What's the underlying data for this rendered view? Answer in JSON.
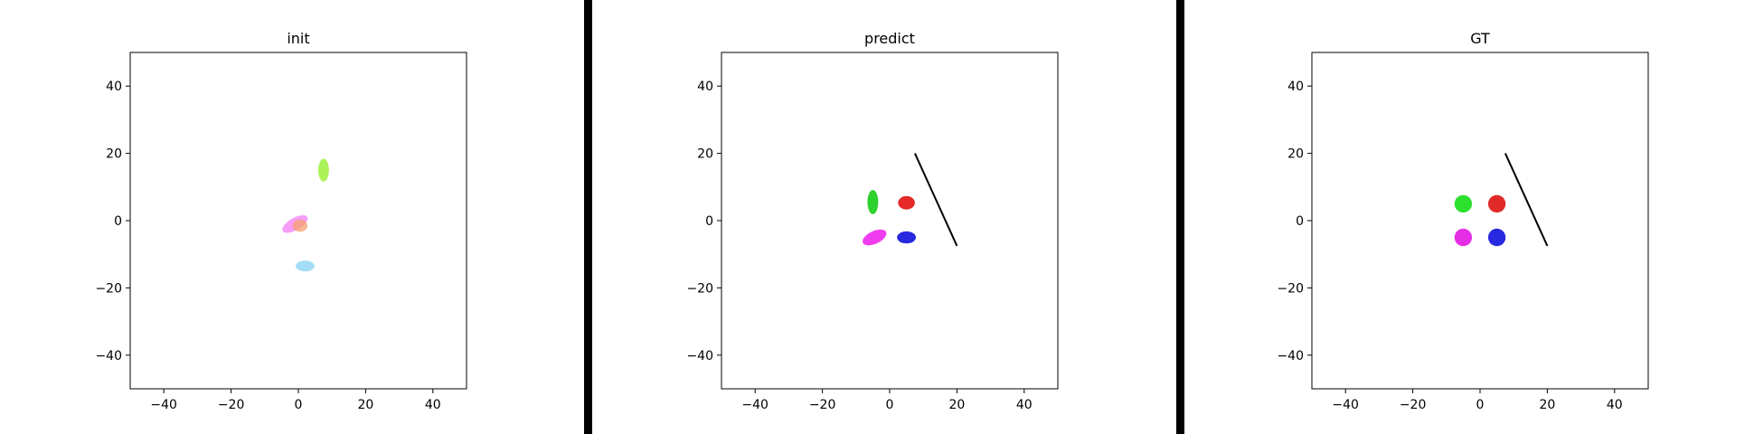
{
  "chart_data": [
    {
      "type": "scatter",
      "title": "init",
      "xlim": [
        -50,
        50
      ],
      "ylim": [
        -50,
        50
      ],
      "xticks": [
        -40,
        -20,
        0,
        20,
        40
      ],
      "yticks": [
        -40,
        -20,
        0,
        20,
        40
      ],
      "grid": false,
      "ellipses": [
        {
          "cx": 7.5,
          "cy": 15,
          "rx": 1.6,
          "ry": 3.4,
          "angle": 0,
          "color": "#9ef03c",
          "opacity": 0.85
        },
        {
          "cx": -1,
          "cy": -1,
          "rx": 4.2,
          "ry": 1.8,
          "angle": -30,
          "color": "#f584f5",
          "opacity": 0.8
        },
        {
          "cx": 0.5,
          "cy": -1.5,
          "rx": 2.2,
          "ry": 1.8,
          "angle": 0,
          "color": "#f5a06e",
          "opacity": 0.75
        },
        {
          "cx": 2,
          "cy": -13.5,
          "rx": 2.8,
          "ry": 1.6,
          "angle": 0,
          "color": "#9ad8f5",
          "opacity": 0.9
        }
      ],
      "lines": []
    },
    {
      "type": "scatter",
      "title": "predict",
      "xlim": [
        -50,
        50
      ],
      "ylim": [
        -50,
        50
      ],
      "xticks": [
        -40,
        -20,
        0,
        20,
        40
      ],
      "yticks": [
        -40,
        -20,
        0,
        20,
        40
      ],
      "grid": false,
      "ellipses": [
        {
          "cx": -5,
          "cy": 5.5,
          "rx": 1.6,
          "ry": 3.6,
          "angle": 0,
          "color": "#2ed12e",
          "opacity": 1
        },
        {
          "cx": 5,
          "cy": 5.3,
          "rx": 2.5,
          "ry": 2.0,
          "angle": 0,
          "color": "#e62a2a",
          "opacity": 1
        },
        {
          "cx": -4.5,
          "cy": -5,
          "rx": 3.8,
          "ry": 1.9,
          "angle": -25,
          "color": "#ef3cef",
          "opacity": 1
        },
        {
          "cx": 5,
          "cy": -5,
          "rx": 2.8,
          "ry": 1.8,
          "angle": 0,
          "color": "#2828e0",
          "opacity": 1
        }
      ],
      "lines": [
        {
          "x": [
            7.5,
            20
          ],
          "y": [
            20,
            -7.5
          ],
          "color": "#000000"
        }
      ]
    },
    {
      "type": "scatter",
      "title": "GT",
      "xlim": [
        -50,
        50
      ],
      "ylim": [
        -50,
        50
      ],
      "xticks": [
        -40,
        -20,
        0,
        20,
        40
      ],
      "yticks": [
        -40,
        -20,
        0,
        20,
        40
      ],
      "grid": false,
      "ellipses": [
        {
          "cx": -5,
          "cy": 5,
          "rx": 2.6,
          "ry": 2.6,
          "angle": 0,
          "color": "#2ee02e",
          "opacity": 1
        },
        {
          "cx": 5,
          "cy": 5,
          "rx": 2.6,
          "ry": 2.6,
          "angle": 0,
          "color": "#e02a2a",
          "opacity": 1
        },
        {
          "cx": -5,
          "cy": -5,
          "rx": 2.6,
          "ry": 2.6,
          "angle": 0,
          "color": "#e62ee6",
          "opacity": 1
        },
        {
          "cx": 5,
          "cy": -5,
          "rx": 2.6,
          "ry": 2.6,
          "angle": 0,
          "color": "#2828e0",
          "opacity": 1
        }
      ],
      "lines": [
        {
          "x": [
            7.5,
            20
          ],
          "y": [
            20,
            -7.5
          ],
          "color": "#000000"
        }
      ]
    }
  ]
}
